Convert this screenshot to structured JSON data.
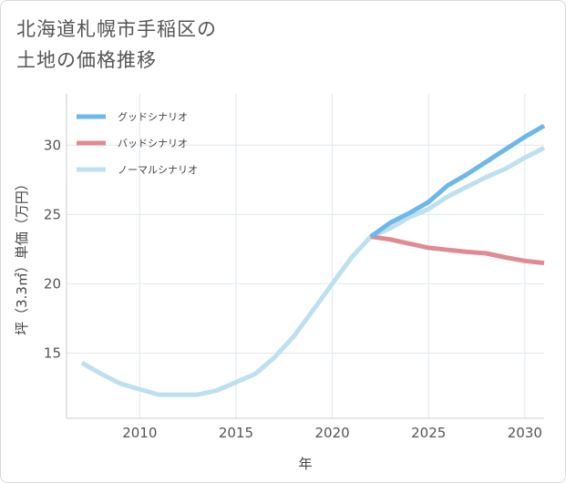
{
  "title": {
    "line1": "北海道札幌市手稲区の",
    "line2": "土地の価格推移"
  },
  "chart_data": {
    "type": "line",
    "xlabel": "年",
    "ylabel": "坪（3.3㎡）単価（万円）",
    "xlim": [
      2006.2,
      2031
    ],
    "ylim": [
      10.3,
      33.7
    ],
    "xticks": [
      2010,
      2015,
      2020,
      2025,
      2030
    ],
    "yticks": [
      15,
      20,
      25,
      30
    ],
    "grid": true,
    "legend_position": "top-left",
    "series": [
      {
        "name": "グッドシナリオ",
        "color": "#6cb8e8",
        "x": [
          2022,
          2023,
          2024,
          2025,
          2026,
          2027,
          2028,
          2029,
          2030,
          2031
        ],
        "y": [
          23.4,
          24.4,
          25.1,
          25.9,
          27.1,
          27.9,
          28.8,
          29.7,
          30.6,
          31.4
        ]
      },
      {
        "name": "バッドシナリオ",
        "color": "#e08b93",
        "x": [
          2022,
          2023,
          2024,
          2025,
          2026,
          2027,
          2028,
          2029,
          2030,
          2031
        ],
        "y": [
          23.4,
          23.2,
          22.9,
          22.6,
          22.45,
          22.3,
          22.2,
          21.9,
          21.65,
          21.5
        ]
      },
      {
        "name": "ノーマルシナリオ",
        "color": "#bde0f0",
        "x": [
          2007,
          2008,
          2009,
          2010,
          2011,
          2012,
          2013,
          2014,
          2015,
          2016,
          2017,
          2018,
          2019,
          2020,
          2021,
          2022,
          2023,
          2024,
          2025,
          2026,
          2027,
          2028,
          2029,
          2030,
          2031
        ],
        "y": [
          14.3,
          13.5,
          12.8,
          12.4,
          12.0,
          12.0,
          12.0,
          12.3,
          12.9,
          13.5,
          14.7,
          16.2,
          18.1,
          20.0,
          21.9,
          23.4,
          24.0,
          24.8,
          25.4,
          26.3,
          27.0,
          27.7,
          28.3,
          29.1,
          29.8
        ]
      }
    ]
  }
}
